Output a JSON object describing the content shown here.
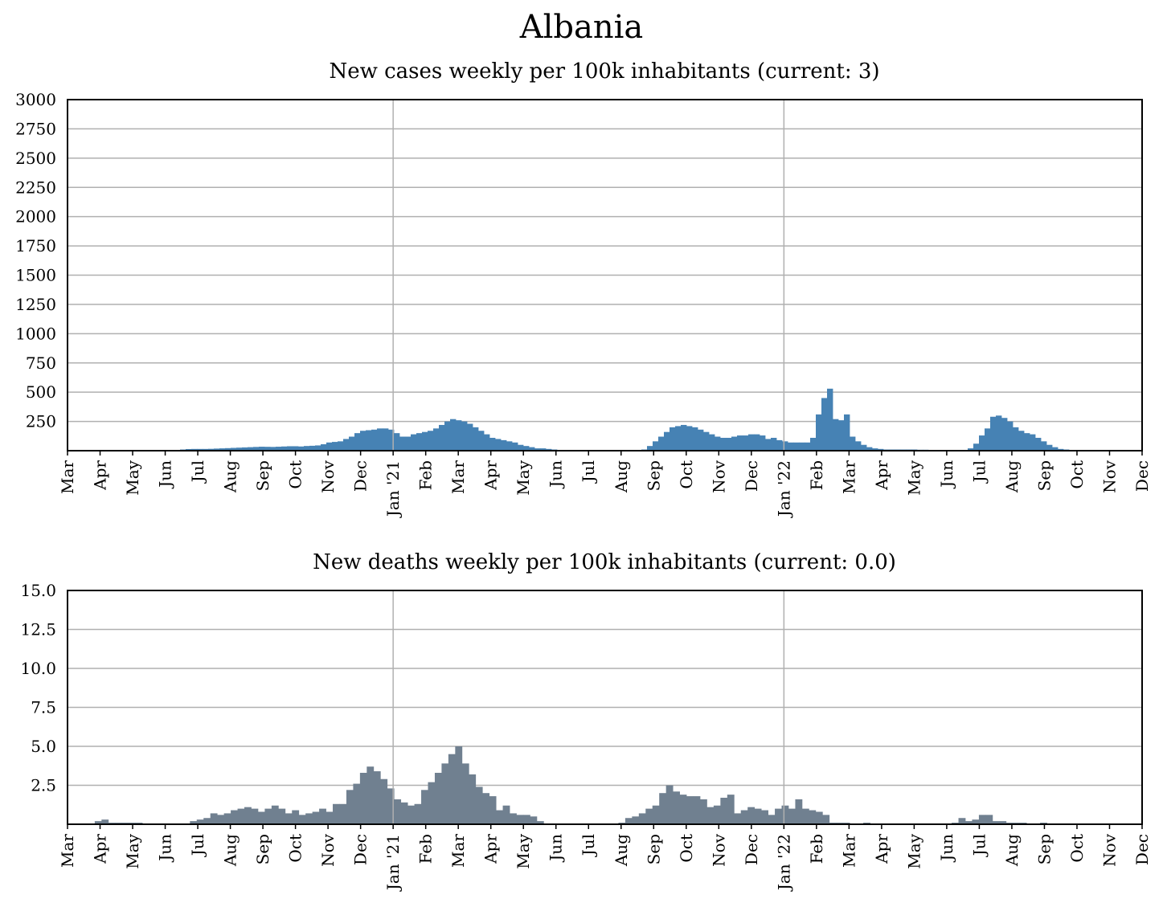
{
  "title": "Albania",
  "colors": {
    "cases": "#4682b4",
    "deaths": "#708090",
    "grid": "#b0b0b0",
    "axis": "#000000"
  },
  "chart_data": [
    {
      "type": "bar",
      "title": "New cases weekly per 100k inhabitants (current: 3)",
      "ylim": [
        0,
        3000
      ],
      "yticks": [
        "250",
        "500",
        "750",
        "1000",
        "1250",
        "1500",
        "1750",
        "2000",
        "2250",
        "2500",
        "2750",
        "3000"
      ],
      "ytick_values": [
        250,
        500,
        750,
        1000,
        1250,
        1500,
        1750,
        2000,
        2250,
        2500,
        2750,
        3000
      ],
      "xticks": [
        "Mar",
        "Apr",
        "May",
        "Jun",
        "Jul",
        "Aug",
        "Sep",
        "Oct",
        "Nov",
        "Dec",
        "Jan '21",
        "Feb",
        "Mar",
        "Apr",
        "May",
        "Jun",
        "Jul",
        "Aug",
        "Sep",
        "Oct",
        "Nov",
        "Dec",
        "Jan '22",
        "Feb",
        "Mar",
        "Apr",
        "May",
        "Jun",
        "Jul",
        "Aug",
        "Sep",
        "Oct",
        "Nov",
        "Dec"
      ],
      "year_lines": [
        "Jan '21",
        "Jan '22"
      ],
      "grid": true,
      "values": [
        0,
        0,
        0,
        0,
        0,
        0,
        0,
        0,
        0,
        0,
        0,
        0,
        0,
        0,
        0,
        0,
        0,
        0,
        2,
        5,
        10,
        14,
        15,
        15,
        15,
        16,
        18,
        20,
        22,
        24,
        26,
        28,
        30,
        32,
        34,
        33,
        32,
        34,
        36,
        38,
        38,
        36,
        40,
        42,
        45,
        55,
        70,
        75,
        80,
        100,
        120,
        150,
        170,
        175,
        180,
        190,
        190,
        180,
        150,
        120,
        120,
        140,
        150,
        160,
        170,
        190,
        220,
        250,
        270,
        260,
        250,
        230,
        200,
        170,
        140,
        110,
        100,
        90,
        80,
        70,
        50,
        40,
        30,
        20,
        20,
        15,
        10,
        5,
        0,
        0,
        0,
        0,
        0,
        0,
        0,
        0,
        0,
        0,
        0,
        0,
        0,
        5,
        10,
        40,
        80,
        120,
        160,
        200,
        210,
        220,
        210,
        200,
        180,
        160,
        140,
        120,
        110,
        110,
        120,
        130,
        130,
        140,
        140,
        130,
        100,
        110,
        90,
        80,
        70,
        70,
        70,
        70,
        110,
        310,
        450,
        530,
        270,
        260,
        310,
        120,
        80,
        50,
        30,
        20,
        15,
        10,
        10,
        10,
        10,
        10,
        10,
        8,
        8,
        5,
        5,
        5,
        5,
        5,
        5,
        5,
        20,
        60,
        130,
        190,
        290,
        300,
        280,
        250,
        200,
        170,
        150,
        140,
        110,
        80,
        50,
        30,
        15,
        10,
        5,
        5,
        3,
        3,
        3,
        3,
        3,
        3,
        3,
        3,
        3,
        3,
        3
      ]
    },
    {
      "type": "bar",
      "title": "New deaths weekly per 100k inhabitants (current: 0.0)",
      "ylim": [
        0,
        15
      ],
      "yticks": [
        "2.5",
        "5.0",
        "7.5",
        "10.0",
        "12.5",
        "15.0"
      ],
      "ytick_values": [
        2.5,
        5,
        7.5,
        10,
        12.5,
        15
      ],
      "xticks": [
        "Mar",
        "Apr",
        "May",
        "Jun",
        "Jul",
        "Aug",
        "Sep",
        "Oct",
        "Nov",
        "Dec",
        "Jan '21",
        "Feb",
        "Mar",
        "Apr",
        "May",
        "Jun",
        "Jul",
        "Aug",
        "Sep",
        "Oct",
        "Nov",
        "Dec",
        "Jan '22",
        "Feb",
        "Mar",
        "Apr",
        "May",
        "Jun",
        "Jul",
        "Aug",
        "Sep",
        "Oct",
        "Nov",
        "Dec"
      ],
      "year_lines": [
        "Jan '21",
        "Jan '22"
      ],
      "grid": true,
      "values": [
        0,
        0,
        0,
        0,
        0.2,
        0.3,
        0.1,
        0.1,
        0.1,
        0.1,
        0.1,
        0,
        0,
        0,
        0,
        0,
        0,
        0,
        0.2,
        0.3,
        0.4,
        0.7,
        0.6,
        0.7,
        0.9,
        1.0,
        1.1,
        1.0,
        0.8,
        1.0,
        1.2,
        1.0,
        0.7,
        0.9,
        0.6,
        0.7,
        0.8,
        1.0,
        0.8,
        1.3,
        1.3,
        2.2,
        2.6,
        3.3,
        3.7,
        3.4,
        2.9,
        2.3,
        1.6,
        1.4,
        1.2,
        1.3,
        2.2,
        2.7,
        3.3,
        3.9,
        4.5,
        5.0,
        3.9,
        3.2,
        2.4,
        2.0,
        1.8,
        0.9,
        1.2,
        0.7,
        0.6,
        0.6,
        0.5,
        0.2,
        0,
        0,
        0,
        0,
        0,
        0,
        0,
        0,
        0,
        0,
        0,
        0.1,
        0.4,
        0.5,
        0.7,
        1.0,
        1.2,
        2.0,
        2.5,
        2.1,
        1.9,
        1.8,
        1.8,
        1.6,
        1.1,
        1.2,
        1.7,
        1.9,
        0.7,
        0.9,
        1.1,
        1.0,
        0.9,
        0.6,
        1.0,
        1.2,
        1.0,
        1.6,
        1.0,
        0.9,
        0.8,
        0.6,
        0.1,
        0.1,
        0.1,
        0,
        0,
        0.1,
        0,
        0,
        0,
        0,
        0,
        0,
        0,
        0,
        0,
        0,
        0,
        0,
        0.1,
        0.4,
        0.2,
        0.3,
        0.6,
        0.6,
        0.2,
        0.2,
        0.1,
        0.1,
        0.1,
        0,
        0,
        0.1,
        0,
        0,
        0,
        0,
        0,
        0,
        0,
        0,
        0,
        0,
        0,
        0,
        0,
        0
      ]
    }
  ]
}
